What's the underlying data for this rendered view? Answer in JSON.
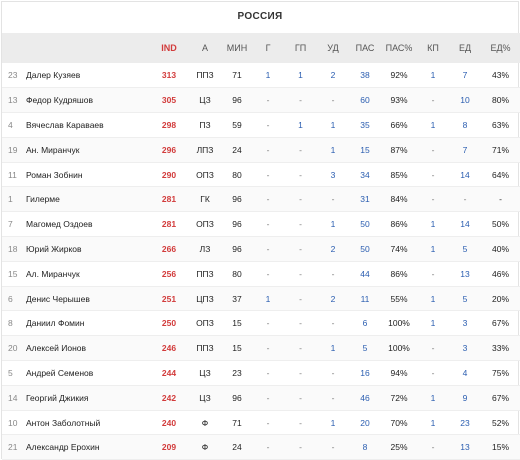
{
  "title": "РОССИЯ",
  "columns": [
    "IND",
    "А",
    "МИН",
    "Г",
    "ГП",
    "УД",
    "ПАС",
    "ПАС%",
    "КП",
    "ЕД",
    "ЕД%"
  ],
  "rows": [
    {
      "num": "23",
      "name": "Далер Кузяев",
      "ind": "313",
      "pos": "ППЗ",
      "min": "71",
      "g": "1",
      "gp": "1",
      "ud": "2",
      "pas": "38",
      "pas_pct": "92%",
      "kp": "1",
      "ed": "7",
      "ed_pct": "43%"
    },
    {
      "num": "13",
      "name": "Федор Кудряшов",
      "ind": "305",
      "pos": "ЦЗ",
      "min": "96",
      "g": "-",
      "gp": "-",
      "ud": "-",
      "pas": "60",
      "pas_pct": "93%",
      "kp": "-",
      "ed": "10",
      "ed_pct": "80%"
    },
    {
      "num": "4",
      "name": "Вячеслав Караваев",
      "ind": "298",
      "pos": "ПЗ",
      "min": "59",
      "g": "-",
      "gp": "1",
      "ud": "1",
      "pas": "35",
      "pas_pct": "66%",
      "kp": "1",
      "ed": "8",
      "ed_pct": "63%"
    },
    {
      "num": "19",
      "name": "Ан. Миранчук",
      "ind": "296",
      "pos": "ЛПЗ",
      "min": "24",
      "g": "-",
      "gp": "-",
      "ud": "1",
      "pas": "15",
      "pas_pct": "87%",
      "kp": "-",
      "ed": "7",
      "ed_pct": "71%"
    },
    {
      "num": "11",
      "name": "Роман Зобнин",
      "ind": "290",
      "pos": "ОПЗ",
      "min": "80",
      "g": "-",
      "gp": "-",
      "ud": "3",
      "pas": "34",
      "pas_pct": "85%",
      "kp": "-",
      "ed": "14",
      "ed_pct": "64%"
    },
    {
      "num": "1",
      "name": "Гилерме",
      "ind": "281",
      "pos": "ГК",
      "min": "96",
      "g": "-",
      "gp": "-",
      "ud": "-",
      "pas": "31",
      "pas_pct": "84%",
      "kp": "-",
      "ed": "-",
      "ed_pct": "-"
    },
    {
      "num": "7",
      "name": "Магомед Оздоев",
      "ind": "281",
      "pos": "ОПЗ",
      "min": "96",
      "g": "-",
      "gp": "-",
      "ud": "1",
      "pas": "50",
      "pas_pct": "86%",
      "kp": "1",
      "ed": "14",
      "ed_pct": "50%"
    },
    {
      "num": "18",
      "name": "Юрий Жирков",
      "ind": "266",
      "pos": "ЛЗ",
      "min": "96",
      "g": "-",
      "gp": "-",
      "ud": "2",
      "pas": "50",
      "pas_pct": "74%",
      "kp": "1",
      "ed": "5",
      "ed_pct": "40%"
    },
    {
      "num": "15",
      "name": "Ал. Миранчук",
      "ind": "256",
      "pos": "ППЗ",
      "min": "80",
      "g": "-",
      "gp": "-",
      "ud": "-",
      "pas": "44",
      "pas_pct": "86%",
      "kp": "-",
      "ed": "13",
      "ed_pct": "46%"
    },
    {
      "num": "6",
      "name": "Денис Черышев",
      "ind": "251",
      "pos": "ЦПЗ",
      "min": "37",
      "g": "1",
      "gp": "-",
      "ud": "2",
      "pas": "11",
      "pas_pct": "55%",
      "kp": "1",
      "ed": "5",
      "ed_pct": "20%"
    },
    {
      "num": "8",
      "name": "Даниил Фомин",
      "ind": "250",
      "pos": "ОПЗ",
      "min": "15",
      "g": "-",
      "gp": "-",
      "ud": "-",
      "pas": "6",
      "pas_pct": "100%",
      "kp": "1",
      "ed": "3",
      "ed_pct": "67%"
    },
    {
      "num": "20",
      "name": "Алексей Ионов",
      "ind": "246",
      "pos": "ППЗ",
      "min": "15",
      "g": "-",
      "gp": "-",
      "ud": "1",
      "pas": "5",
      "pas_pct": "100%",
      "kp": "-",
      "ed": "3",
      "ed_pct": "33%"
    },
    {
      "num": "5",
      "name": "Андрей Семенов",
      "ind": "244",
      "pos": "ЦЗ",
      "min": "23",
      "g": "-",
      "gp": "-",
      "ud": "-",
      "pas": "16",
      "pas_pct": "94%",
      "kp": "-",
      "ed": "4",
      "ed_pct": "75%"
    },
    {
      "num": "14",
      "name": "Георгий Джикия",
      "ind": "242",
      "pos": "ЦЗ",
      "min": "96",
      "g": "-",
      "gp": "-",
      "ud": "-",
      "pas": "46",
      "pas_pct": "72%",
      "kp": "1",
      "ed": "9",
      "ed_pct": "67%"
    },
    {
      "num": "10",
      "name": "Антон Заболотный",
      "ind": "240",
      "pos": "Ф",
      "min": "71",
      "g": "-",
      "gp": "-",
      "ud": "1",
      "pas": "20",
      "pas_pct": "70%",
      "kp": "1",
      "ed": "23",
      "ed_pct": "52%"
    },
    {
      "num": "21",
      "name": "Александр Ерохин",
      "ind": "209",
      "pos": "Ф",
      "min": "24",
      "g": "-",
      "gp": "-",
      "ud": "-",
      "pas": "8",
      "pas_pct": "25%",
      "kp": "-",
      "ed": "13",
      "ed_pct": "15%"
    }
  ]
}
